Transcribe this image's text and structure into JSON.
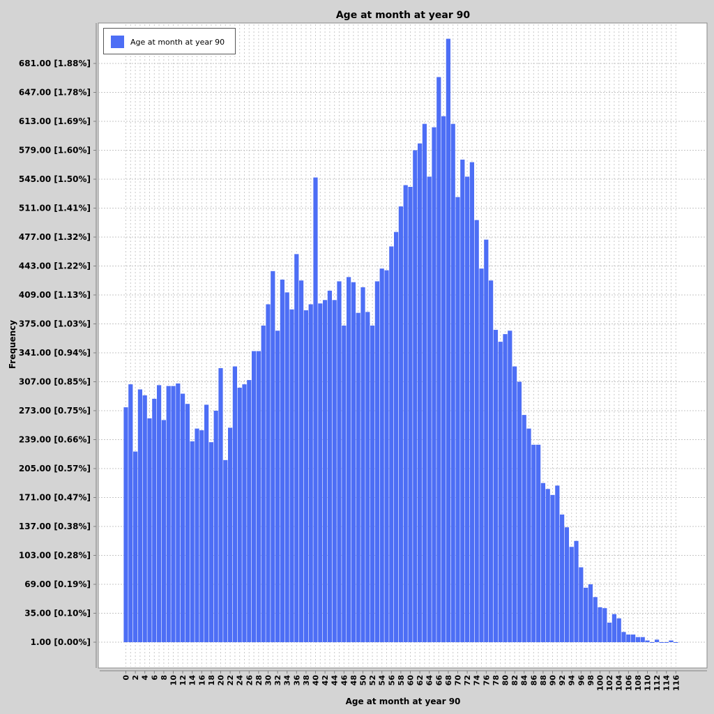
{
  "chart_data": {
    "type": "bar",
    "title": "Age at month at year 90",
    "xlabel": "Age at month at year 90",
    "ylabel": "Frequency",
    "legend": {
      "position": "top-left",
      "entries": [
        "Age at month at year 90"
      ]
    },
    "series": [
      {
        "name": "Age at month at year 90",
        "color": "#4d6ef5"
      }
    ],
    "grid": true,
    "ylim": [
      1,
      681
    ],
    "y_ticks": [
      "1.00 [0.00%]",
      "35.00 [0.10%]",
      "69.00 [0.19%]",
      "103.00 [0.28%]",
      "137.00 [0.38%]",
      "171.00 [0.47%]",
      "205.00 [0.57%]",
      "239.00 [0.66%]",
      "273.00 [0.75%]",
      "307.00 [0.85%]",
      "341.00 [0.94%]",
      "375.00 [1.03%]",
      "409.00 [1.13%]",
      "443.00 [1.22%]",
      "477.00 [1.32%]",
      "511.00 [1.41%]",
      "545.00 [1.50%]",
      "579.00 [1.60%]",
      "613.00 [1.69%]",
      "647.00 [1.78%]",
      "681.00 [1.88%]"
    ],
    "x_ticks": [
      "0",
      "2",
      "4",
      "6",
      "8",
      "10",
      "12",
      "14",
      "16",
      "18",
      "20",
      "22",
      "24",
      "26",
      "28",
      "30",
      "32",
      "34",
      "36",
      "38",
      "40",
      "42",
      "44",
      "46",
      "48",
      "50",
      "52",
      "54",
      "56",
      "58",
      "60",
      "62",
      "64",
      "66",
      "68",
      "70",
      "72",
      "74",
      "76",
      "78",
      "80",
      "82",
      "84",
      "86",
      "88",
      "90",
      "92",
      "94",
      "96",
      "98",
      "100",
      "102",
      "104",
      "106",
      "108",
      "110",
      "112",
      "114",
      "116"
    ],
    "x": [
      0,
      1,
      2,
      3,
      4,
      5,
      6,
      7,
      8,
      9,
      10,
      11,
      12,
      13,
      14,
      15,
      16,
      17,
      18,
      19,
      20,
      21,
      22,
      23,
      24,
      25,
      26,
      27,
      28,
      29,
      30,
      31,
      32,
      33,
      34,
      35,
      36,
      37,
      38,
      39,
      40,
      41,
      42,
      43,
      44,
      45,
      46,
      47,
      48,
      49,
      50,
      51,
      52,
      53,
      54,
      55,
      56,
      57,
      58,
      59,
      60,
      61,
      62,
      63,
      64,
      65,
      66,
      67,
      68,
      69,
      70,
      71,
      72,
      73,
      74,
      75,
      76,
      77,
      78,
      79,
      80,
      81,
      82,
      83,
      84,
      85,
      86,
      87,
      88,
      89,
      90,
      91,
      92,
      93,
      94,
      95,
      96,
      97,
      98,
      99,
      100,
      101,
      102,
      103,
      104,
      105,
      106,
      107,
      108,
      109,
      110,
      111,
      112,
      113,
      114,
      115,
      116
    ],
    "values": [
      277,
      304,
      225,
      298,
      291,
      264,
      287,
      303,
      262,
      302,
      302,
      305,
      293,
      281,
      237,
      252,
      250,
      280,
      236,
      273,
      323,
      215,
      253,
      325,
      300,
      304,
      309,
      343,
      343,
      373,
      398,
      437,
      367,
      427,
      412,
      392,
      457,
      426,
      391,
      398,
      547,
      399,
      403,
      414,
      403,
      425,
      373,
      430,
      424,
      388,
      418,
      389,
      373,
      425,
      440,
      438,
      466,
      483,
      513,
      538,
      536,
      579,
      587,
      610,
      548,
      606,
      665,
      619,
      710,
      610,
      524,
      568,
      548,
      565,
      497,
      440,
      474,
      426,
      368,
      354,
      363,
      367,
      325,
      307,
      268,
      252,
      233,
      233,
      188,
      181,
      174,
      185,
      151,
      136,
      113,
      120,
      89,
      65,
      69,
      54,
      42,
      41,
      24,
      34,
      29,
      13,
      10,
      10,
      7,
      7,
      3,
      1,
      4,
      1,
      1,
      3,
      1
    ]
  }
}
